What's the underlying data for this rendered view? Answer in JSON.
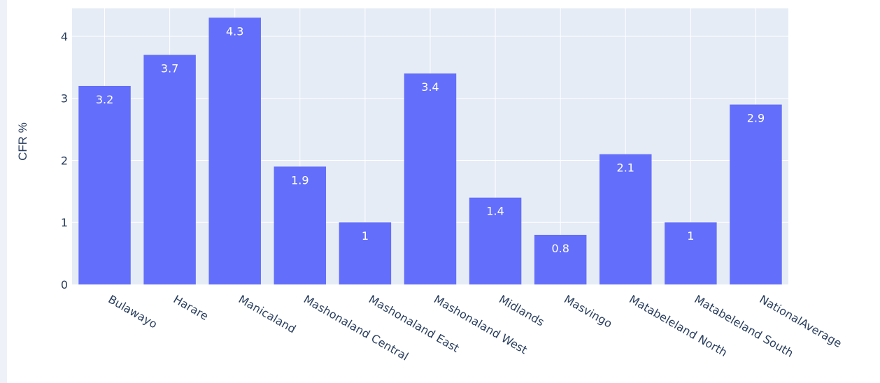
{
  "chart_data": {
    "type": "bar",
    "title": "",
    "xlabel": "",
    "ylabel": "CFR %",
    "ylim": [
      0,
      4.45
    ],
    "yticks": [
      0,
      1,
      2,
      3,
      4
    ],
    "grid": true,
    "legend": "none",
    "categories": [
      "Bulawayo",
      "Harare",
      "Manicaland",
      "Mashonaland Central",
      "Mashonaland East",
      "Mashonaland West",
      "Midlands",
      "Masvingo",
      "Matabeleland North",
      "Matabeleland South",
      "NationalAverage"
    ],
    "values": [
      3.2,
      3.7,
      4.3,
      1.9,
      1.0,
      3.4,
      1.4,
      0.8,
      2.1,
      1.0,
      2.9
    ],
    "data_labels": [
      "3.2",
      "3.7",
      "4.3",
      "1.9",
      "1",
      "3.4",
      "1.4",
      "0.8",
      "2.1",
      "1",
      "2.9"
    ],
    "colors": {
      "bar": "#636efa",
      "plot_background": "#e5ecf6",
      "grid": "#ffffff",
      "text": "#2a3f5f"
    }
  }
}
